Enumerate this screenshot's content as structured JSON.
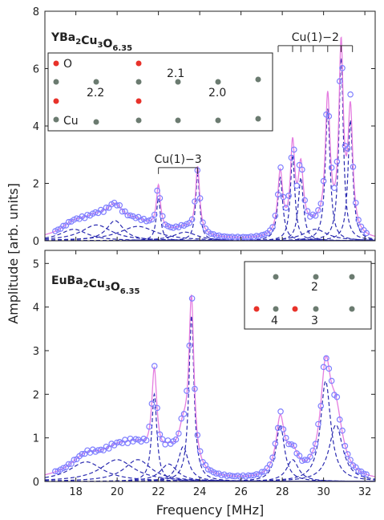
{
  "chart_data": {
    "type": "line",
    "xlabel": "Frequency [MHz]",
    "ylabel": "Amplitude [arb. units]",
    "xlim": [
      16.5,
      32.5
    ],
    "x_ticks": [
      "18",
      "20",
      "22",
      "24",
      "26",
      "28",
      "30",
      "32"
    ],
    "x_tick_values": [
      18,
      20,
      22,
      24,
      26,
      28,
      30,
      32
    ],
    "colors": {
      "data_marker": "#7f7fff",
      "fit_line": "#e57ee0",
      "components": "#2a2ab0",
      "oxygen": "#e8322a",
      "copper": "#6b7b70"
    },
    "panels": [
      {
        "id": "top",
        "title_parts": [
          {
            "t": "YBa",
            "sub": false
          },
          {
            "t": "2",
            "sub": true
          },
          {
            "t": "Cu",
            "sub": false
          },
          {
            "t": "3",
            "sub": true
          },
          {
            "t": "O",
            "sub": false
          },
          {
            "t": "6.35",
            "sub": true
          }
        ],
        "ylim": [
          0,
          8
        ],
        "y_ticks": [
          "0",
          "2",
          "4",
          "6",
          "8"
        ],
        "y_tick_values": [
          0,
          2,
          4,
          6,
          8
        ],
        "peaks": [
          {
            "center": 17.9,
            "amp": 0.4,
            "width": 0.8
          },
          {
            "center": 19.0,
            "amp": 0.55,
            "width": 0.9
          },
          {
            "center": 19.9,
            "amp": 0.7,
            "width": 0.5
          },
          {
            "center": 21.0,
            "amp": 0.5,
            "width": 1.1
          },
          {
            "center": 22.0,
            "amp": 1.5,
            "width": 0.12
          },
          {
            "center": 23.9,
            "amp": 2.3,
            "width": 0.12
          },
          {
            "center": 23.3,
            "amp": 0.3,
            "width": 0.7
          },
          {
            "center": 27.9,
            "amp": 2.2,
            "width": 0.15
          },
          {
            "center": 28.5,
            "amp": 3.0,
            "width": 0.13
          },
          {
            "center": 28.9,
            "amp": 2.2,
            "width": 0.15
          },
          {
            "center": 30.2,
            "amp": 4.6,
            "width": 0.14
          },
          {
            "center": 30.85,
            "amp": 6.4,
            "width": 0.13
          },
          {
            "center": 31.3,
            "amp": 4.2,
            "width": 0.14
          },
          {
            "center": 29.6,
            "amp": 0.4,
            "width": 0.7
          }
        ],
        "annotations": [
          {
            "label": "Cu(1)−3",
            "x_from": 22.0,
            "x_to": 23.9,
            "y": 2.55,
            "ticks": [
              22.0,
              23.9
            ]
          },
          {
            "label": "Cu(1)−2",
            "x_from": 27.8,
            "x_to": 31.4,
            "y": 6.8,
            "ticks": [
              27.8,
              28.5,
              28.9,
              29.5,
              30.2,
              30.85,
              31.4
            ]
          }
        ],
        "inset": {
          "labels": {
            "o": "O",
            "cu": "Cu",
            "a": "2.1",
            "b": "2.2",
            "c": "2.0"
          }
        }
      },
      {
        "id": "bottom",
        "title_parts": [
          {
            "t": "EuBa",
            "sub": false
          },
          {
            "t": "2",
            "sub": true
          },
          {
            "t": "Cu",
            "sub": false
          },
          {
            "t": "3",
            "sub": true
          },
          {
            "t": "O",
            "sub": false
          },
          {
            "t": "6.35",
            "sub": true
          }
        ],
        "ylim": [
          0,
          5.3
        ],
        "y_ticks": [
          "0",
          "1",
          "2",
          "3",
          "4",
          "5"
        ],
        "y_tick_values": [
          0,
          1,
          2,
          3,
          4,
          5
        ],
        "peaks": [
          {
            "center": 18.5,
            "amp": 0.45,
            "width": 1.0
          },
          {
            "center": 20.0,
            "amp": 0.5,
            "width": 1.0
          },
          {
            "center": 21.0,
            "amp": 0.5,
            "width": 0.8
          },
          {
            "center": 21.8,
            "amp": 2.0,
            "width": 0.15
          },
          {
            "center": 22.5,
            "amp": 0.4,
            "width": 0.5
          },
          {
            "center": 23.6,
            "amp": 3.8,
            "width": 0.15
          },
          {
            "center": 23.2,
            "amp": 0.8,
            "width": 0.3
          },
          {
            "center": 27.9,
            "amp": 1.3,
            "width": 0.25
          },
          {
            "center": 28.5,
            "amp": 0.5,
            "width": 0.35
          },
          {
            "center": 30.1,
            "amp": 2.3,
            "width": 0.3
          },
          {
            "center": 30.6,
            "amp": 1.3,
            "width": 0.4
          }
        ],
        "inset": {
          "labels": {
            "a": "2",
            "b": "4",
            "c": "3"
          }
        }
      }
    ]
  }
}
